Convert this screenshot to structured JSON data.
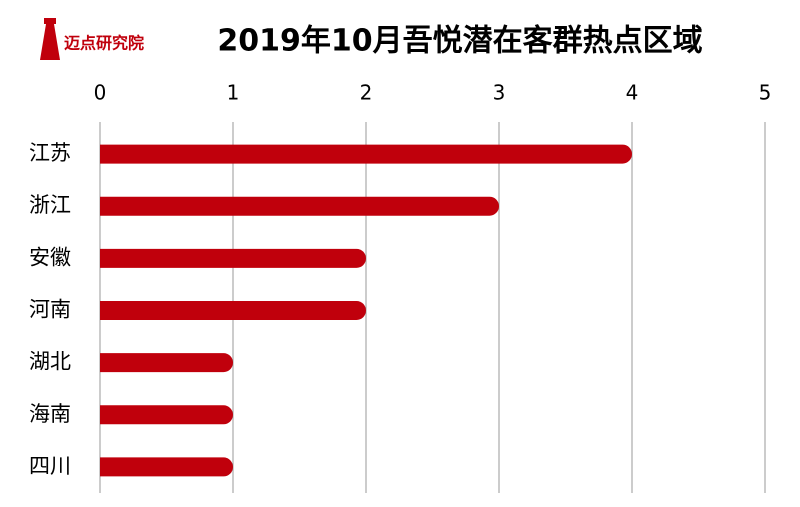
{
  "logo": {
    "text": "迈点研究院"
  },
  "chart_data": {
    "type": "bar",
    "orientation": "horizontal",
    "title": "2019年10月吾悦潜在客群热点区域",
    "categories": [
      "江苏",
      "浙江",
      "安徽",
      "河南",
      "湖北",
      "海南",
      "四川"
    ],
    "values": [
      4,
      3,
      2,
      2,
      1,
      1,
      1
    ],
    "color": "#c0000c",
    "xlim": [
      0,
      5
    ],
    "xticks": [
      0,
      1,
      2,
      3,
      4,
      5
    ],
    "grid": true
  }
}
